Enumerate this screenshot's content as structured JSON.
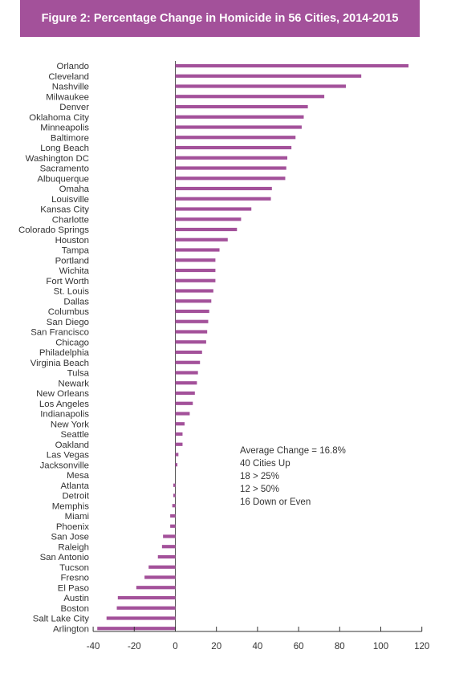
{
  "chart_data": {
    "type": "bar",
    "orientation": "horizontal",
    "title": "Figure 2: Percentage Change in Homicide in 56 Cities, 2014-2015",
    "xlabel": "",
    "ylabel": "",
    "xlim": [
      -40,
      120
    ],
    "xticks": [
      -40,
      -20,
      0,
      20,
      40,
      60,
      80,
      100,
      120
    ],
    "grid": false,
    "bar_color": "#a3519a",
    "categories": [
      "Orlando",
      "Cleveland",
      "Nashville",
      "Milwaukee",
      "Denver",
      "Oklahoma City",
      "Minneapolis",
      "Baltimore",
      "Long Beach",
      "Washington DC",
      "Sacramento",
      "Albuquerque",
      "Omaha",
      "Louisville",
      "Kansas City",
      "Charlotte",
      "Colorado Springs",
      "Houston",
      "Tampa",
      "Portland",
      "Wichita",
      "Fort Worth",
      "St. Louis",
      "Dallas",
      "Columbus",
      "San Diego",
      "San Francisco",
      "Chicago",
      "Philadelphia",
      "Virginia Beach",
      "Tulsa",
      "Newark",
      "New Orleans",
      "Los Angeles",
      "Indianapolis",
      "New York",
      "Seattle",
      "Oakland",
      "Las Vegas",
      "Jacksonville",
      "Mesa",
      "Atlanta",
      "Detroit",
      "Memphis",
      "Miami",
      "Phoenix",
      "San Jose",
      "Raleigh",
      "San Antonio",
      "Tucson",
      "Fresno",
      "El Paso",
      "Austin",
      "Boston",
      "Salt Lake City",
      "Arlington"
    ],
    "values": [
      113.5,
      90.5,
      83,
      72.5,
      64.5,
      62.5,
      61.5,
      58.5,
      56.5,
      54.5,
      54,
      53.5,
      47,
      46.5,
      37,
      32,
      30,
      25.5,
      21.5,
      19.5,
      19.5,
      19.5,
      18.5,
      17.5,
      16.5,
      16,
      15.5,
      15,
      13,
      12,
      11,
      10.5,
      9.5,
      8.5,
      7,
      4.5,
      3.5,
      3.5,
      1.5,
      1,
      0,
      -1,
      -1,
      -1.5,
      -2.5,
      -2.5,
      -6,
      -6.5,
      -8.5,
      -13,
      -15,
      -19,
      -28,
      -28.5,
      -33.5,
      -38
    ]
  },
  "notes": [
    "Average Change = 16.8%",
    "40 Cities Up",
    "18 > 25%",
    "12 > 50%",
    "16 Down or Even"
  ]
}
